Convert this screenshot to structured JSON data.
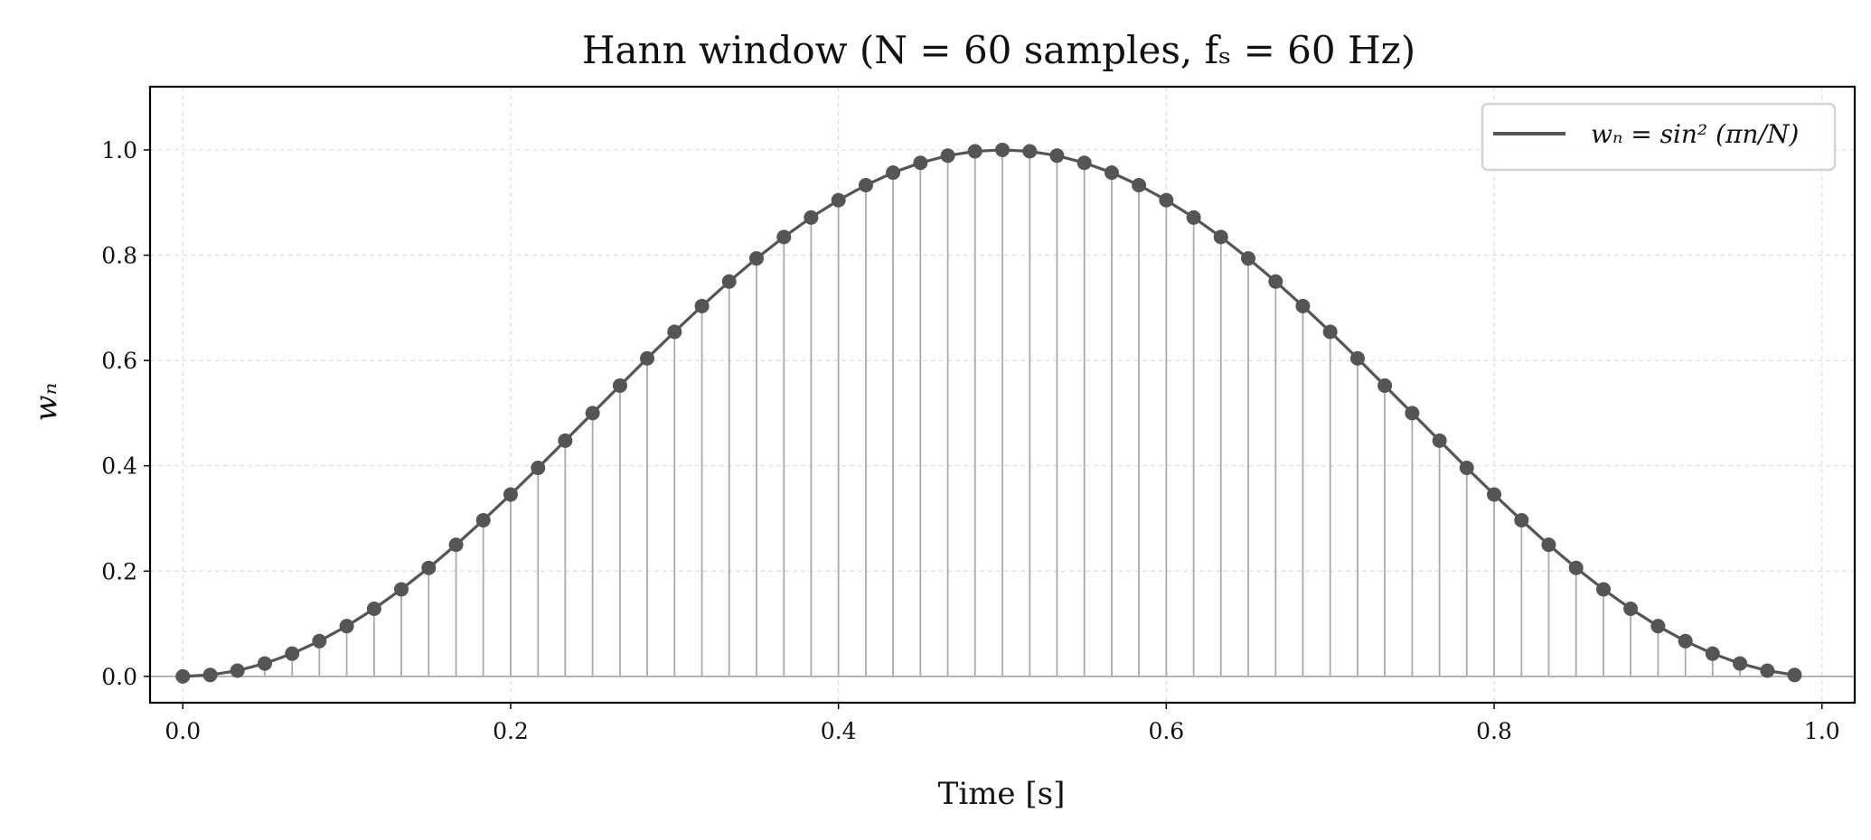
{
  "chart_data": {
    "type": "line",
    "title": "Hann window (N = 60 samples, fₛ = 60 Hz)",
    "xlabel": "Time [s]",
    "ylabel": "wₙ",
    "xlim": [
      -0.02,
      1.02
    ],
    "ylim": [
      -0.05,
      1.12
    ],
    "xticks": [
      "0.0",
      "0.2",
      "0.4",
      "0.6",
      "0.8",
      "1.0"
    ],
    "yticks": [
      "0.0",
      "0.2",
      "0.4",
      "0.6",
      "0.8",
      "1.0"
    ],
    "grid": true,
    "legend_position": "top-right",
    "style": "stem with markers and connecting line",
    "colors": {
      "line": "#555555",
      "stem": "#aaaaaa",
      "grid": "#dddddd"
    },
    "series": [
      {
        "name": "wₙ = sin² (πn/N)",
        "x": [
          0,
          0.0167,
          0.0333,
          0.05,
          0.0667,
          0.0833,
          0.1,
          0.1167,
          0.1333,
          0.15,
          0.1667,
          0.1833,
          0.2,
          0.2167,
          0.2333,
          0.25,
          0.2667,
          0.2833,
          0.3,
          0.3167,
          0.3333,
          0.35,
          0.3667,
          0.3833,
          0.4,
          0.4167,
          0.4333,
          0.45,
          0.4667,
          0.4833,
          0.5,
          0.5167,
          0.5333,
          0.55,
          0.5667,
          0.5833,
          0.6,
          0.6167,
          0.6333,
          0.65,
          0.6667,
          0.6833,
          0.7,
          0.7167,
          0.7333,
          0.75,
          0.7667,
          0.7833,
          0.8,
          0.8167,
          0.8333,
          0.85,
          0.8667,
          0.8833,
          0.9,
          0.9167,
          0.9333,
          0.95,
          0.9667,
          0.9833
        ],
        "y": [
          0,
          0.0027,
          0.0109,
          0.0245,
          0.0432,
          0.067,
          0.0955,
          0.1284,
          0.1654,
          0.2061,
          0.25,
          0.2966,
          0.3455,
          0.396,
          0.4477,
          0.5,
          0.5523,
          0.604,
          0.6545,
          0.7034,
          0.75,
          0.7939,
          0.8346,
          0.8716,
          0.9045,
          0.933,
          0.9568,
          0.9755,
          0.9891,
          0.9973,
          1.0,
          0.9973,
          0.9891,
          0.9755,
          0.9568,
          0.933,
          0.9045,
          0.8716,
          0.8346,
          0.7939,
          0.75,
          0.7034,
          0.6545,
          0.604,
          0.5523,
          0.5,
          0.4477,
          0.396,
          0.3455,
          0.2966,
          0.25,
          0.2061,
          0.1654,
          0.1284,
          0.0955,
          0.067,
          0.0432,
          0.0245,
          0.0109,
          0.0027
        ]
      }
    ]
  }
}
